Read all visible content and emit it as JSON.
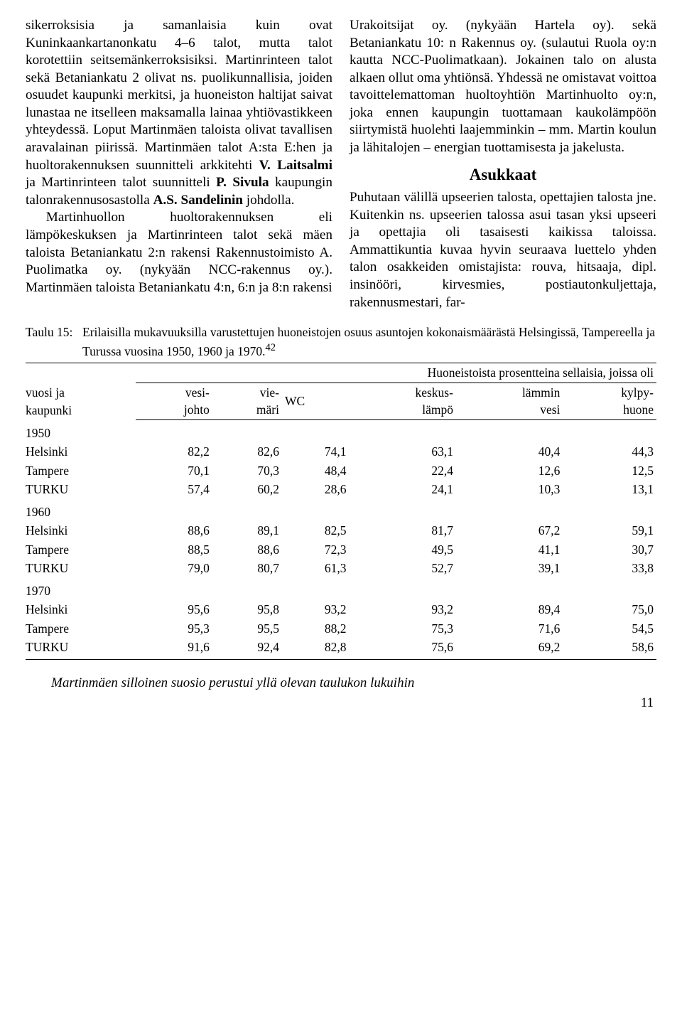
{
  "left_column": {
    "p1_html": "sikerroksisia ja samanlaisia kuin ovat Kuninkaankartanonkatu 4–6 talot, mutta talot korotettiin seitsemänkerroksisiksi. Martinrinteen talot sekä Betaniankatu 2 olivat ns. puolikunnallisia, joiden osuudet kaupunki merkitsi, ja huoneiston haltijat saivat lunastaa ne itselleen maksamalla lainaa yhtiövastikkeen yhteydessä. Loput Martinmäen taloista olivat tavallisen aravalainan piirissä. Martinmäen talot A:sta E:hen ja huoltorakennuksen suunnitteli arkkitehti <span class=\"bold\">V. Laitsalmi</span> ja Martinrinteen talot suunnitteli <span class=\"bold\">P. Sivula</span> kaupungin talonrakennusosastolla <span class=\"bold\">A.S. Sandelinin</span> johdolla.",
    "p2_html": "Martinhuollon huoltorakennuksen eli lämpökeskuksen ja Martinrinteen talot sekä mäen taloista Betaniankatu 2:n rakensi Rakennustoimisto A. Puolimatka oy. (nykyään NCC-rakennus oy.). Martinmäen taloista Betaniankatu 4:n, 6:n ja 8:n rakensi"
  },
  "right_column": {
    "p1_html": "Urakoitsijat oy. (nykyään Hartela oy). sekä Betaniankatu 10: n Rakennus oy. (sulautui Ruola oy:n kautta NCC-Puolimatkaan). Jokainen talo on alusta alkaen ollut oma yhtiönsä. Yhdessä ne omistavat voittoa tavoittelemattoman huoltoyhtiön Martinhuolto oy:n, joka ennen kaupungin tuottamaan kaukolämpöön siirtymistä huolehti laajemminkin – mm. Martin koulun ja lähitalojen – energian tuottamisesta ja jakelusta.",
    "subhead": "Asukkaat",
    "p2_html": "Puhutaan välillä upseerien talosta, opettajien talosta jne. Kuitenkin ns. upseerien talossa asui tasan yksi upseeri ja opettajia oli tasaisesti kaikissa taloissa. Ammattikuntia kuvaa hyvin seuraava luettelo yhden talon osakkeiden omistajista: rouva, hitsaaja, dipl. insinööri, kirvesmies, postiautonkuljettaja, rakennusmestari, far-"
  },
  "table": {
    "caption_label": "Taulu 15:",
    "caption_text_html": "Erilaisilla mukavuuksilla varustettujen huoneistojen osuus asuntojen kokonaismäärästä Helsingissä, Tampereella ja Turussa vuosina 1950, 1960 ja 1970.<sup>42</sup>",
    "group_header": "Huoneistoista prosentteina sellaisia, joissa oli",
    "row_header_line1": "vuosi ja",
    "row_header_line2": "kaupunki",
    "col_headers": [
      {
        "l1": "vesi-",
        "l2": "johto"
      },
      {
        "l1": "vie-",
        "l2": "märi"
      },
      {
        "l1": "WC",
        "l2": ""
      },
      {
        "l1": "keskus-",
        "l2": "lämpö"
      },
      {
        "l1": "lämmin",
        "l2": "vesi"
      },
      {
        "l1": "kylpy-",
        "l2": "huone"
      }
    ],
    "groups": [
      {
        "year": "1950",
        "rows": [
          {
            "city": "Helsinki",
            "vals": [
              "82,2",
              "82,6",
              "74,1",
              "63,1",
              "40,4",
              "44,3"
            ]
          },
          {
            "city": "Tampere",
            "vals": [
              "70,1",
              "70,3",
              "48,4",
              "22,4",
              "12,6",
              "12,5"
            ]
          },
          {
            "city": "TURKU",
            "vals": [
              "57,4",
              "60,2",
              "28,6",
              "24,1",
              "10,3",
              "13,1"
            ]
          }
        ]
      },
      {
        "year": "1960",
        "rows": [
          {
            "city": "Helsinki",
            "vals": [
              "88,6",
              "89,1",
              "82,5",
              "81,7",
              "67,2",
              "59,1"
            ]
          },
          {
            "city": "Tampere",
            "vals": [
              "88,5",
              "88,6",
              "72,3",
              "49,5",
              "41,1",
              "30,7"
            ]
          },
          {
            "city": "TURKU",
            "vals": [
              "79,0",
              "80,7",
              "61,3",
              "52,7",
              "39,1",
              "33,8"
            ]
          }
        ]
      },
      {
        "year": "1970",
        "rows": [
          {
            "city": "Helsinki",
            "vals": [
              "95,6",
              "95,8",
              "93,2",
              "93,2",
              "89,4",
              "75,0"
            ]
          },
          {
            "city": "Tampere",
            "vals": [
              "95,3",
              "95,5",
              "88,2",
              "75,3",
              "71,6",
              "54,5"
            ]
          },
          {
            "city": "TURKU",
            "vals": [
              "91,6",
              "92,4",
              "82,8",
              "75,6",
              "69,2",
              "58,6"
            ]
          }
        ]
      }
    ]
  },
  "bottom_caption": "Martinmäen silloinen suosio perustui yllä olevan taulukon lukuihin",
  "page_number": "11"
}
